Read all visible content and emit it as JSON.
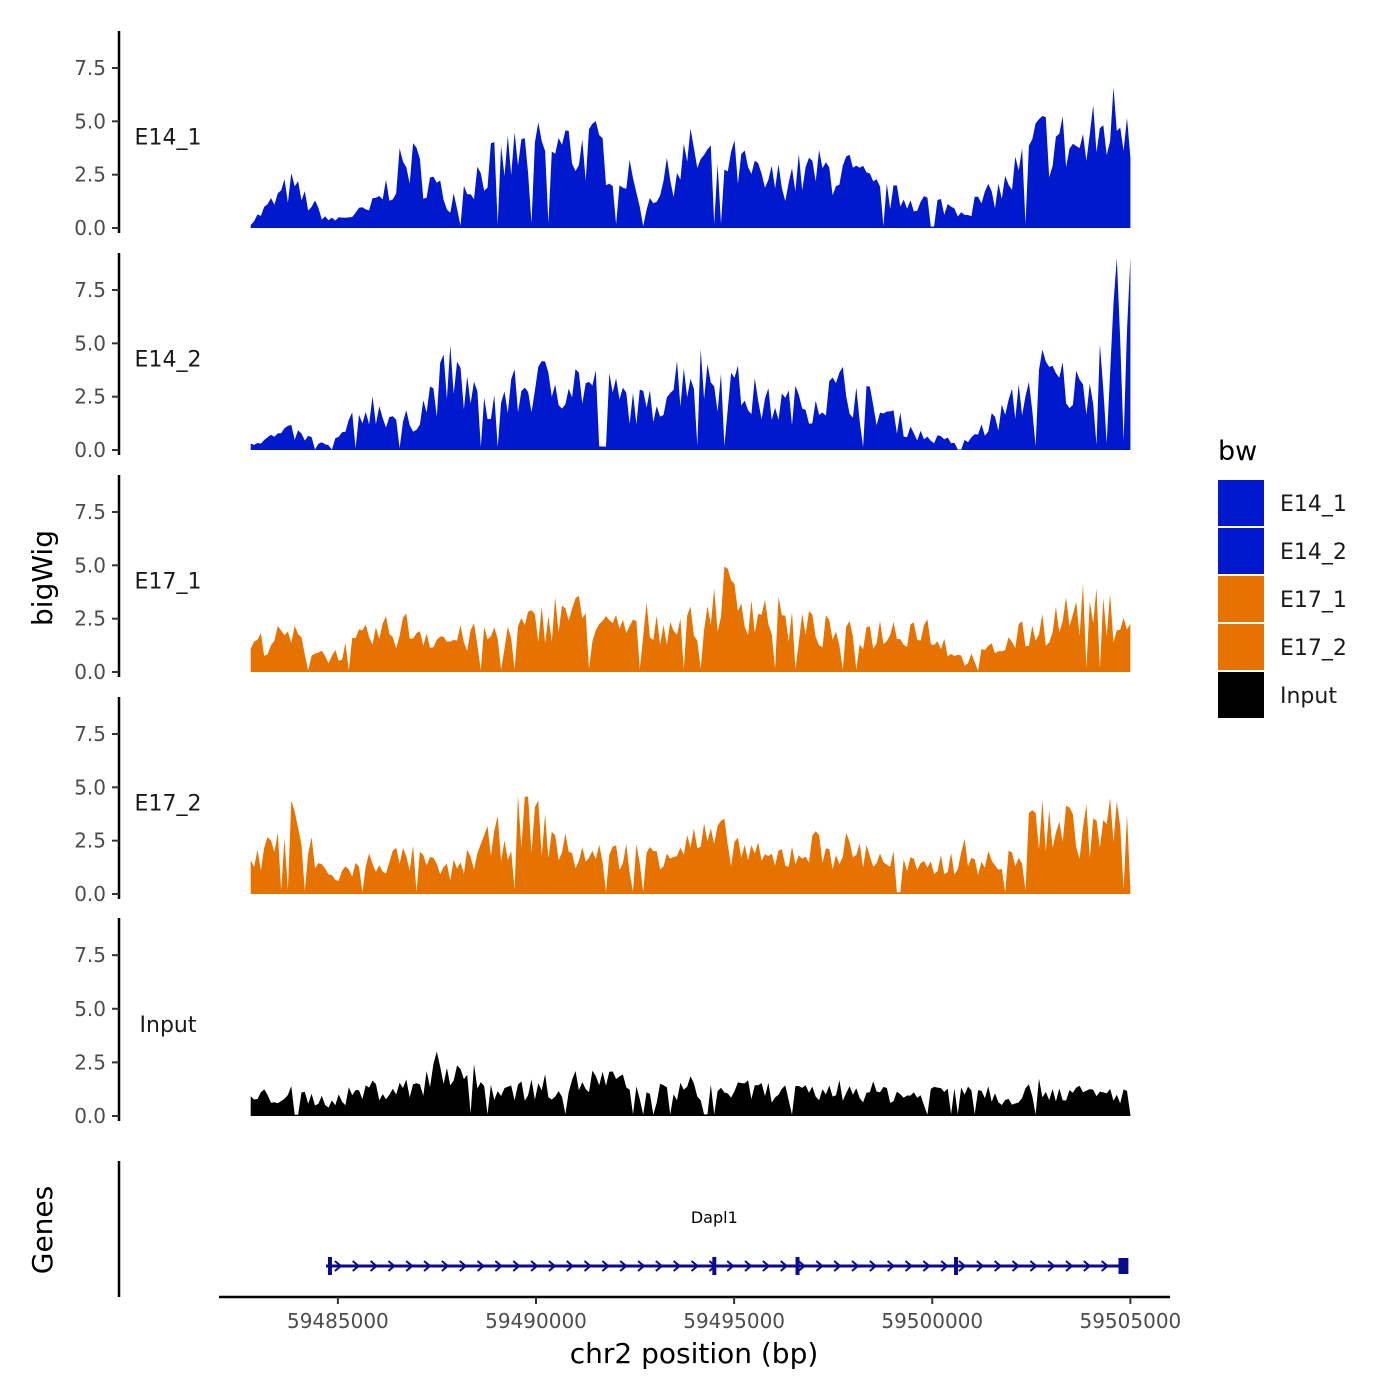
{
  "chart_data": {
    "type": "area",
    "chromosome": "chr2",
    "xlabel": "chr2 position (bp)",
    "ylabel": "bigWig",
    "genes_label": "Genes",
    "xlim": [
      59482000,
      59506000
    ],
    "x_ticks": [
      59485000,
      59490000,
      59495000,
      59500000,
      59505000
    ],
    "x_tick_labels": [
      "59485000",
      "59490000",
      "59495000",
      "59500000",
      "59505000"
    ],
    "ylim": [
      0,
      9
    ],
    "y_ticks": [
      0,
      2.5,
      5,
      7.5
    ],
    "y_tick_labels": [
      "0.0",
      "2.5",
      "5.0",
      "7.5"
    ],
    "x_sampled": [
      59482800,
      59483800,
      59484800,
      59485800,
      59486800,
      59487800,
      59488800,
      59489800,
      59490800,
      59491800,
      59492800,
      59493800,
      59494800,
      59495800,
      59496800,
      59497800,
      59498800,
      59499800,
      59500800,
      59501800,
      59502800,
      59503800,
      59504800
    ],
    "series": [
      {
        "name": "E14_1",
        "color": "#0019CC",
        "values": [
          0.3,
          2.3,
          0.4,
          1.0,
          3.8,
          1.5,
          3.5,
          4.3,
          4.5,
          4.2,
          1.5,
          4.0,
          3.8,
          2.5,
          3.1,
          3.2,
          1.8,
          1.5,
          1.0,
          2.2,
          5.0,
          4.5,
          6.4
        ]
      },
      {
        "name": "E14_2",
        "color": "#0019CC",
        "values": [
          0.4,
          1.0,
          0.2,
          2.5,
          1.5,
          4.2,
          2.5,
          3.5,
          4.0,
          3.2,
          2.3,
          4.5,
          3.8,
          2.5,
          2.6,
          3.5,
          2.0,
          0.7,
          0.4,
          2.0,
          4.2,
          3.2,
          8.6
        ]
      },
      {
        "name": "E17_1",
        "color": "#E67300",
        "values": [
          1.5,
          2.0,
          0.8,
          2.0,
          2.5,
          1.8,
          2.0,
          2.5,
          3.5,
          2.3,
          2.8,
          2.5,
          4.4,
          3.2,
          2.5,
          2.0,
          2.3,
          2.6,
          0.6,
          1.5,
          2.6,
          3.5,
          3.0
        ]
      },
      {
        "name": "E17_2",
        "color": "#E67300",
        "values": [
          1.5,
          4.0,
          0.9,
          1.8,
          2.0,
          1.2,
          2.7,
          4.3,
          2.3,
          2.0,
          2.4,
          2.8,
          3.0,
          1.8,
          2.6,
          2.5,
          2.0,
          1.3,
          2.2,
          1.5,
          4.2,
          3.5,
          4.2
        ]
      },
      {
        "name": "Input",
        "color": "#000000",
        "values": [
          1.0,
          1.2,
          0.8,
          1.5,
          1.5,
          3.0,
          1.5,
          1.5,
          1.8,
          2.0,
          1.2,
          1.6,
          1.4,
          1.4,
          1.2,
          1.5,
          1.3,
          1.1,
          2.0,
          1.0,
          1.5,
          1.2,
          1.2
        ]
      }
    ],
    "legend": {
      "title": "bw",
      "position": "right",
      "entries": [
        {
          "label": "E14_1",
          "color": "#0019CC"
        },
        {
          "label": "E14_2",
          "color": "#0019CC"
        },
        {
          "label": "E17_1",
          "color": "#E67300"
        },
        {
          "label": "E17_2",
          "color": "#E67300"
        },
        {
          "label": "Input",
          "color": "#000000"
        }
      ]
    },
    "gene_track": {
      "gene_name": "Dapl1",
      "start": 59484700,
      "end": 59504900,
      "strand": "+",
      "exons": [
        59484800,
        59494500,
        59496600,
        59500600
      ],
      "terminal_exon": [
        59504700,
        59504950
      ],
      "color": "#0A0A8C"
    }
  }
}
